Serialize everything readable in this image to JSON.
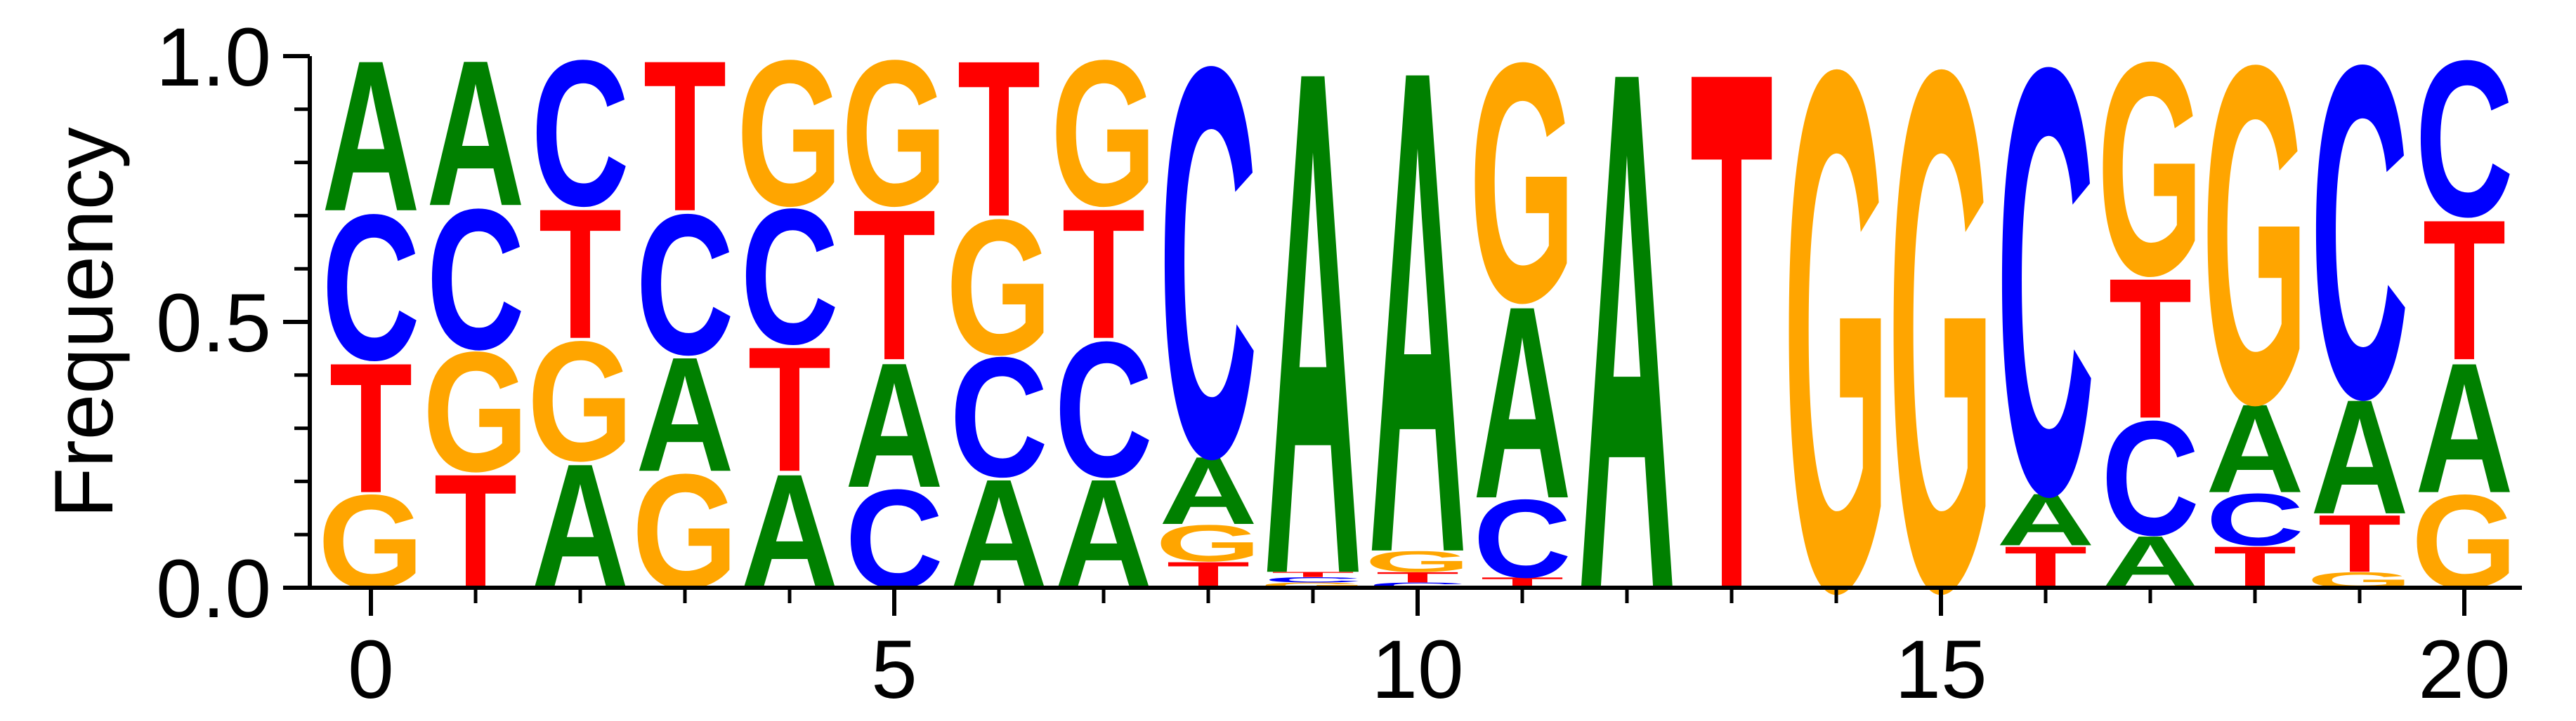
{
  "chart_data": {
    "type": "sequence-logo",
    "title": "",
    "xlabel": "",
    "ylabel": "Frequency",
    "xlim": [
      -0.5,
      20.5
    ],
    "ylim": [
      0,
      1.0
    ],
    "x_ticks": [
      0,
      5,
      10,
      15,
      20
    ],
    "y_ticks": [
      0.0,
      0.5,
      1.0
    ],
    "x_tick_labels": [
      "0",
      "5",
      "10",
      "15",
      "20"
    ],
    "y_tick_labels": [
      "0.0",
      "0.5",
      "1.0"
    ],
    "grid": false,
    "letter_colors": {
      "A": "#008000",
      "C": "#0000ff",
      "G": "#ffa500",
      "T": "#ff0000"
    },
    "positions": [
      {
        "x": 0,
        "stack": [
          {
            "letter": "G",
            "value": 0.18
          },
          {
            "letter": "T",
            "value": 0.25
          },
          {
            "letter": "C",
            "value": 0.28
          },
          {
            "letter": "A",
            "value": 0.29
          }
        ]
      },
      {
        "x": 1,
        "stack": [
          {
            "letter": "T",
            "value": 0.22
          },
          {
            "letter": "G",
            "value": 0.23
          },
          {
            "letter": "C",
            "value": 0.27
          },
          {
            "letter": "A",
            "value": 0.28
          }
        ]
      },
      {
        "x": 2,
        "stack": [
          {
            "letter": "A",
            "value": 0.24
          },
          {
            "letter": "G",
            "value": 0.23
          },
          {
            "letter": "T",
            "value": 0.25
          },
          {
            "letter": "C",
            "value": 0.28
          }
        ]
      },
      {
        "x": 3,
        "stack": [
          {
            "letter": "G",
            "value": 0.22
          },
          {
            "letter": "A",
            "value": 0.22
          },
          {
            "letter": "C",
            "value": 0.27
          },
          {
            "letter": "T",
            "value": 0.29
          }
        ]
      },
      {
        "x": 4,
        "stack": [
          {
            "letter": "A",
            "value": 0.22
          },
          {
            "letter": "T",
            "value": 0.24
          },
          {
            "letter": "C",
            "value": 0.26
          },
          {
            "letter": "G",
            "value": 0.28
          }
        ]
      },
      {
        "x": 5,
        "stack": [
          {
            "letter": "C",
            "value": 0.19
          },
          {
            "letter": "A",
            "value": 0.24
          },
          {
            "letter": "T",
            "value": 0.29
          },
          {
            "letter": "G",
            "value": 0.28
          }
        ]
      },
      {
        "x": 6,
        "stack": [
          {
            "letter": "A",
            "value": 0.21
          },
          {
            "letter": "C",
            "value": 0.23
          },
          {
            "letter": "G",
            "value": 0.26
          },
          {
            "letter": "T",
            "value": 0.3
          }
        ]
      },
      {
        "x": 7,
        "stack": [
          {
            "letter": "A",
            "value": 0.21
          },
          {
            "letter": "C",
            "value": 0.26
          },
          {
            "letter": "T",
            "value": 0.25
          },
          {
            "letter": "G",
            "value": 0.28
          }
        ]
      },
      {
        "x": 8,
        "stack": [
          {
            "letter": "T",
            "value": 0.05
          },
          {
            "letter": "G",
            "value": 0.07
          },
          {
            "letter": "A",
            "value": 0.13
          },
          {
            "letter": "C",
            "value": 0.75
          }
        ]
      },
      {
        "x": 9,
        "stack": [
          {
            "letter": "G",
            "value": 0.01
          },
          {
            "letter": "C",
            "value": 0.01
          },
          {
            "letter": "T",
            "value": 0.01
          },
          {
            "letter": "A",
            "value": 0.97
          }
        ]
      },
      {
        "x": 10,
        "stack": [
          {
            "letter": "C",
            "value": 0.01
          },
          {
            "letter": "T",
            "value": 0.02
          },
          {
            "letter": "G",
            "value": 0.04
          },
          {
            "letter": "A",
            "value": 0.93
          }
        ]
      },
      {
        "x": 11,
        "stack": [
          {
            "letter": "T",
            "value": 0.02
          },
          {
            "letter": "C",
            "value": 0.15
          },
          {
            "letter": "A",
            "value": 0.37
          },
          {
            "letter": "G",
            "value": 0.46
          }
        ]
      },
      {
        "x": 12,
        "stack": [
          {
            "letter": "A",
            "value": 1.0
          }
        ]
      },
      {
        "x": 13,
        "stack": [
          {
            "letter": "T",
            "value": 1.0
          }
        ]
      },
      {
        "x": 14,
        "stack": [
          {
            "letter": "G",
            "value": 1.0
          }
        ]
      },
      {
        "x": 15,
        "stack": [
          {
            "letter": "G",
            "value": 1.0
          }
        ]
      },
      {
        "x": 16,
        "stack": [
          {
            "letter": "T",
            "value": 0.08
          },
          {
            "letter": "A",
            "value": 0.1
          },
          {
            "letter": "C",
            "value": 0.82
          }
        ]
      },
      {
        "x": 17,
        "stack": [
          {
            "letter": "A",
            "value": 0.1
          },
          {
            "letter": "C",
            "value": 0.22
          },
          {
            "letter": "T",
            "value": 0.27
          },
          {
            "letter": "G",
            "value": 0.41
          }
        ]
      },
      {
        "x": 18,
        "stack": [
          {
            "letter": "T",
            "value": 0.08
          },
          {
            "letter": "C",
            "value": 0.1
          },
          {
            "letter": "A",
            "value": 0.17
          },
          {
            "letter": "G",
            "value": 0.65
          }
        ]
      },
      {
        "x": 19,
        "stack": [
          {
            "letter": "G",
            "value": 0.03
          },
          {
            "letter": "T",
            "value": 0.11
          },
          {
            "letter": "A",
            "value": 0.22
          },
          {
            "letter": "C",
            "value": 0.64
          }
        ]
      },
      {
        "x": 20,
        "stack": [
          {
            "letter": "G",
            "value": 0.18
          },
          {
            "letter": "A",
            "value": 0.25
          },
          {
            "letter": "T",
            "value": 0.27
          },
          {
            "letter": "C",
            "value": 0.3
          }
        ]
      }
    ]
  }
}
